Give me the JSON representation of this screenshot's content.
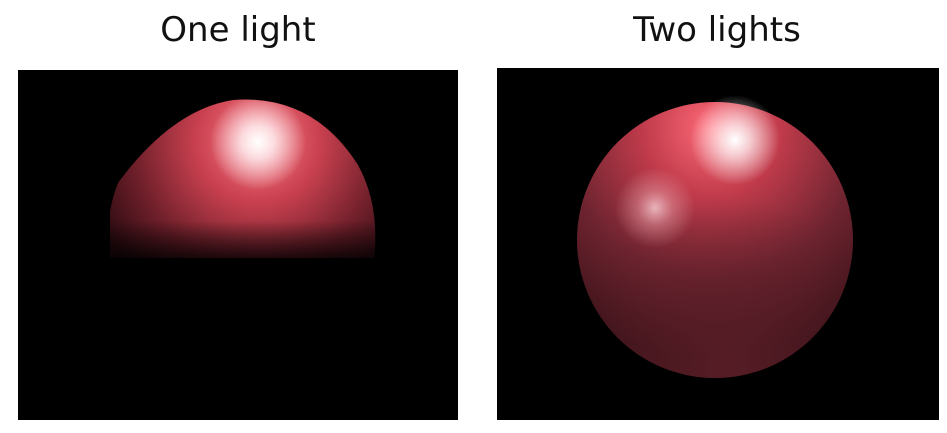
{
  "panels": [
    {
      "title": "One light",
      "lights": 1
    },
    {
      "title": "Two lights",
      "lights": 2
    }
  ],
  "colors": {
    "background": "#000000",
    "sphere_base": "#8a2a35",
    "sphere_highlight": "#ff6a78",
    "specular": "#ffffff"
  }
}
